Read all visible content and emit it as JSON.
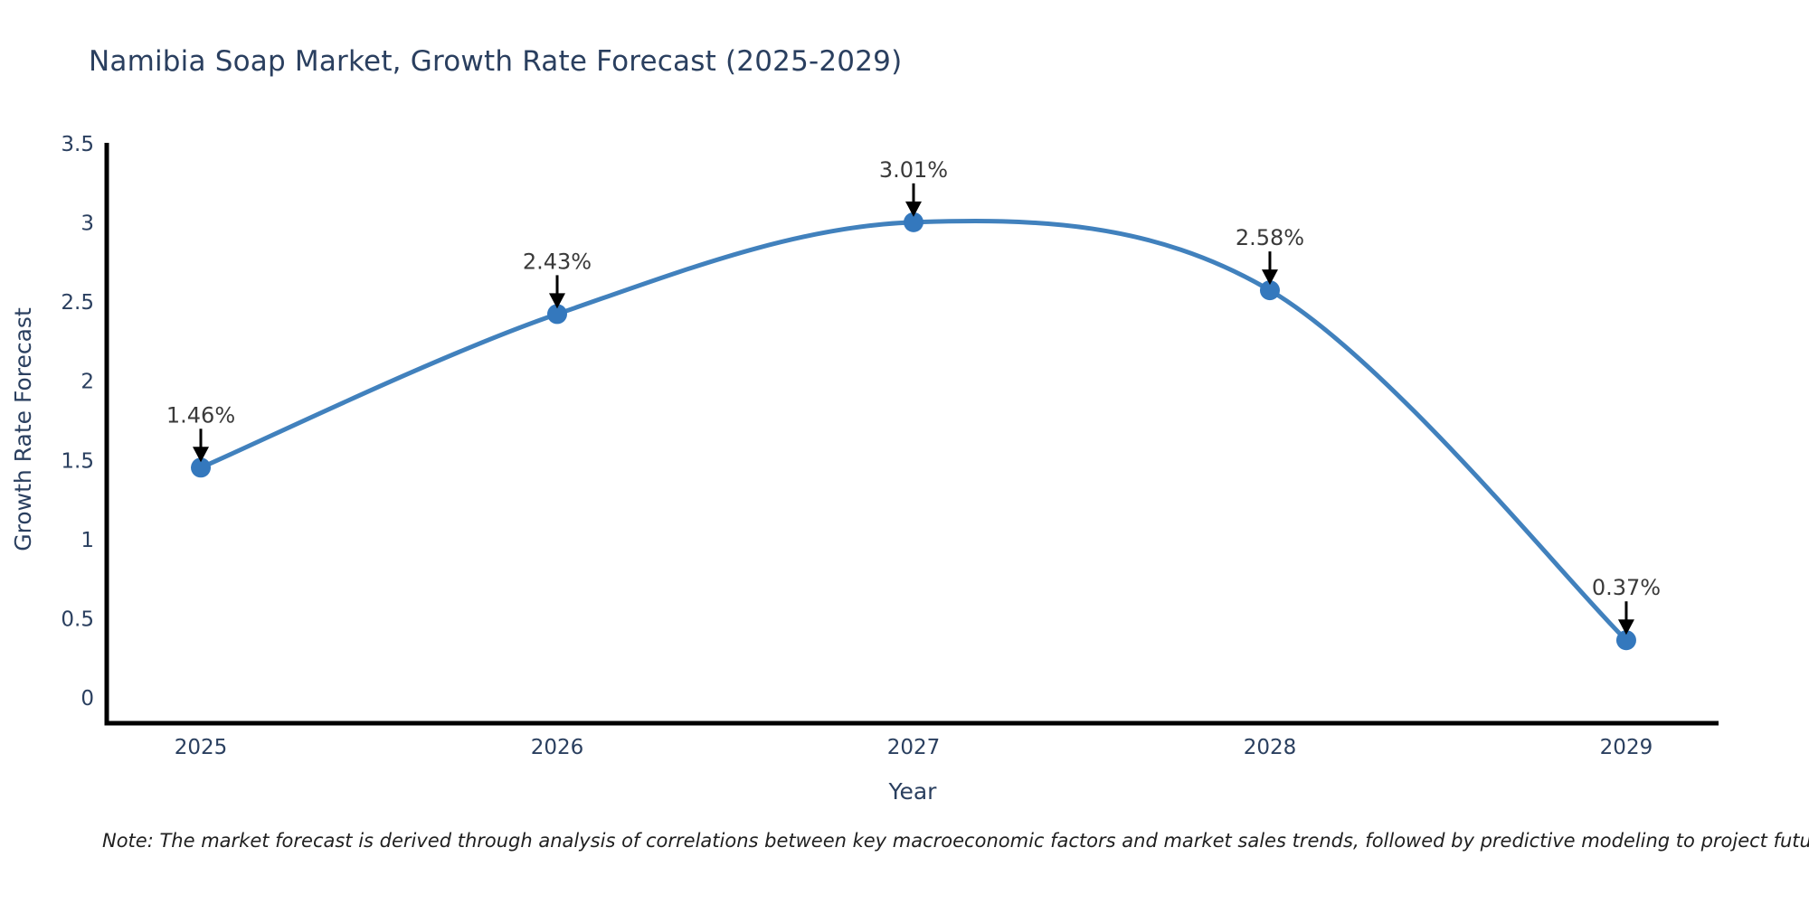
{
  "page": {
    "note": "Note: The market forecast is derived through analysis of correlations between key macroeconomic factors and market sales trends, followed by predictive modeling to project future sales"
  },
  "chart_data": {
    "type": "line",
    "title": "Namibia Soap Market, Growth Rate Forecast (2025-2029)",
    "xlabel": "Year",
    "ylabel": "Growth Rate Forecast",
    "x": [
      2025,
      2026,
      2027,
      2028,
      2029
    ],
    "y": [
      1.46,
      2.43,
      3.01,
      2.58,
      0.37
    ],
    "point_labels": [
      "1.46%",
      "2.43%",
      "3.01%",
      "2.58%",
      "0.37%"
    ],
    "xtick_labels": [
      "2025",
      "2026",
      "2027",
      "2028",
      "2029"
    ],
    "ytick_values": [
      0,
      0.5,
      1,
      1.5,
      2,
      2.5,
      3,
      3.5
    ],
    "ytick_labels": [
      "0",
      "0.5",
      "1",
      "1.5",
      "2",
      "2.5",
      "3",
      "3.5"
    ],
    "ylim": [
      -0.154,
      3.5
    ],
    "xlim": [
      2024.736,
      2029.259
    ],
    "line_shape": "spline",
    "grid": false,
    "legend_position": "none",
    "annotations_have_arrows": true,
    "colors": {
      "line": "#4181bd",
      "marker": "#3478bd",
      "axis_line": "#000000",
      "axis_text": "#2a3f5f",
      "annotation_text": "#3a3a3a",
      "arrow": "#000000",
      "background": "#ffffff"
    }
  }
}
